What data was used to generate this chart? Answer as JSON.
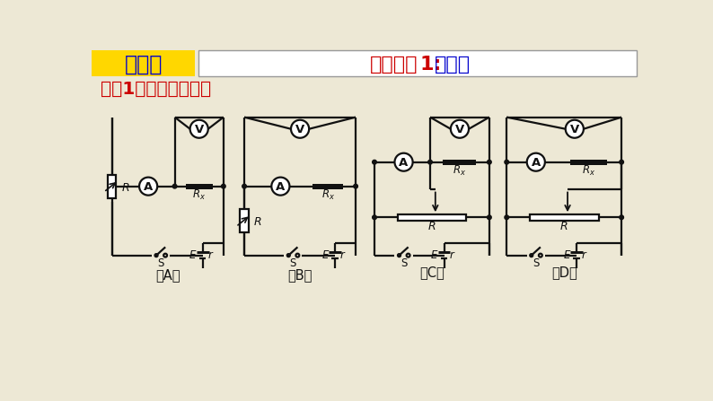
{
  "title_left": "测电阻",
  "title_right_red": "测量原理",
  "title_right_num": "1:",
  "title_right_blue": "伏安法",
  "subtitle": "考法1：四个基本电路",
  "title_left_bg": "#FFD700",
  "title_left_color": "#0000CC",
  "title_right_red_color": "#CC0000",
  "title_right_blue_color": "#0000CC",
  "subtitle_color": "#CC0000",
  "bg_color": "#EDE8D5",
  "lc": "#111111",
  "labels": [
    "（A）",
    "（B）",
    "（C）",
    "（D）"
  ]
}
